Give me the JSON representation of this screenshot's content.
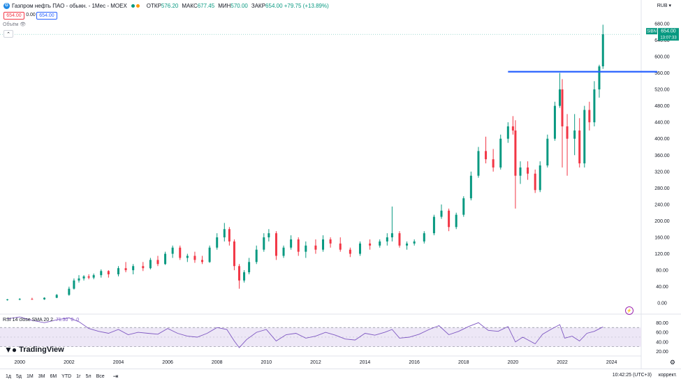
{
  "header": {
    "title": "Газпром нефть ПАО - обыкн. - 1Мес - MOEX",
    "ohlc": [
      {
        "label": "ОТКР",
        "value": "576.20"
      },
      {
        "label": "МАКС",
        "value": "677.45"
      },
      {
        "label": "МИН",
        "value": "570.00"
      },
      {
        "label": "ЗАКР",
        "value": "654.00 +79.75 (+13.89%)"
      }
    ],
    "sell_price": "654.00",
    "spread": "0.00",
    "buy_price": "654.00",
    "currency": "RUB",
    "volume_label": "Объём"
  },
  "rsi": {
    "label": "RSI 14 close SMA 20 2",
    "value": "71.30",
    "extra1": "0",
    "extra2": "0"
  },
  "branding": {
    "name": "TradingView"
  },
  "toolbar": {
    "timeframes": [
      "1д",
      "5д",
      "1М",
      "3М",
      "6М",
      "YTD",
      "1г",
      "5л",
      "Все"
    ],
    "clock": "10:42:25 (UTC+3)",
    "correction": "коррект."
  },
  "colors": {
    "up": "#089981",
    "down": "#f23645",
    "level": "#2962ff",
    "rsi": "#7e57c2",
    "rsi_band": "#ede7f6"
  },
  "chart_data": {
    "type": "candlestick",
    "symbol": "SIBN",
    "last_price": "654.00",
    "last_time": "13:07:33",
    "ylim": [
      -20,
      690
    ],
    "y_ticks": [
      "0.00",
      "40.00",
      "80.00",
      "120.00",
      "160.00",
      "200.00",
      "240.00",
      "280.00",
      "320.00",
      "360.00",
      "400.00",
      "440.00",
      "480.00",
      "520.00",
      "560.00",
      "600.00",
      "640.00",
      "680.00"
    ],
    "x_ticks": [
      "2000",
      "2002",
      "2004",
      "2006",
      "2008",
      "2010",
      "2012",
      "2014",
      "2016",
      "2018",
      "2020",
      "2022",
      "2024"
    ],
    "horizontal_level": 563,
    "candles": [
      {
        "t": 1999.5,
        "o": 8,
        "h": 10,
        "l": 6,
        "c": 9
      },
      {
        "t": 2000.0,
        "o": 9,
        "h": 12,
        "l": 7,
        "c": 10
      },
      {
        "t": 2000.5,
        "o": 10,
        "h": 13,
        "l": 8,
        "c": 9
      },
      {
        "t": 2001.0,
        "o": 9,
        "h": 14,
        "l": 8,
        "c": 13
      },
      {
        "t": 2001.5,
        "o": 13,
        "h": 22,
        "l": 12,
        "c": 20
      },
      {
        "t": 2002.0,
        "o": 20,
        "h": 40,
        "l": 18,
        "c": 35
      },
      {
        "t": 2002.2,
        "o": 35,
        "h": 60,
        "l": 33,
        "c": 55
      },
      {
        "t": 2002.4,
        "o": 55,
        "h": 68,
        "l": 50,
        "c": 60
      },
      {
        "t": 2002.6,
        "o": 60,
        "h": 68,
        "l": 55,
        "c": 65
      },
      {
        "t": 2002.8,
        "o": 65,
        "h": 70,
        "l": 58,
        "c": 62
      },
      {
        "t": 2003.0,
        "o": 62,
        "h": 72,
        "l": 58,
        "c": 68
      },
      {
        "t": 2003.3,
        "o": 68,
        "h": 82,
        "l": 62,
        "c": 78
      },
      {
        "t": 2003.6,
        "o": 78,
        "h": 80,
        "l": 62,
        "c": 70
      },
      {
        "t": 2004.0,
        "o": 70,
        "h": 90,
        "l": 65,
        "c": 85
      },
      {
        "t": 2004.3,
        "o": 85,
        "h": 100,
        "l": 75,
        "c": 80
      },
      {
        "t": 2004.6,
        "o": 80,
        "h": 95,
        "l": 70,
        "c": 90
      },
      {
        "t": 2005.0,
        "o": 90,
        "h": 100,
        "l": 78,
        "c": 85
      },
      {
        "t": 2005.3,
        "o": 85,
        "h": 110,
        "l": 82,
        "c": 105
      },
      {
        "t": 2005.6,
        "o": 105,
        "h": 115,
        "l": 90,
        "c": 95
      },
      {
        "t": 2005.9,
        "o": 95,
        "h": 125,
        "l": 93,
        "c": 120
      },
      {
        "t": 2006.2,
        "o": 120,
        "h": 140,
        "l": 110,
        "c": 135
      },
      {
        "t": 2006.5,
        "o": 135,
        "h": 140,
        "l": 105,
        "c": 110
      },
      {
        "t": 2006.8,
        "o": 110,
        "h": 120,
        "l": 100,
        "c": 115
      },
      {
        "t": 2007.1,
        "o": 115,
        "h": 125,
        "l": 98,
        "c": 105
      },
      {
        "t": 2007.4,
        "o": 105,
        "h": 115,
        "l": 95,
        "c": 100
      },
      {
        "t": 2007.7,
        "o": 100,
        "h": 140,
        "l": 98,
        "c": 135
      },
      {
        "t": 2008.0,
        "o": 135,
        "h": 170,
        "l": 130,
        "c": 160
      },
      {
        "t": 2008.3,
        "o": 160,
        "h": 195,
        "l": 150,
        "c": 180
      },
      {
        "t": 2008.5,
        "o": 180,
        "h": 185,
        "l": 140,
        "c": 150
      },
      {
        "t": 2008.7,
        "o": 150,
        "h": 155,
        "l": 80,
        "c": 90
      },
      {
        "t": 2008.9,
        "o": 90,
        "h": 95,
        "l": 35,
        "c": 55
      },
      {
        "t": 2009.1,
        "o": 55,
        "h": 80,
        "l": 50,
        "c": 75
      },
      {
        "t": 2009.3,
        "o": 75,
        "h": 110,
        "l": 70,
        "c": 100
      },
      {
        "t": 2009.6,
        "o": 100,
        "h": 140,
        "l": 95,
        "c": 130
      },
      {
        "t": 2009.9,
        "o": 130,
        "h": 170,
        "l": 125,
        "c": 160
      },
      {
        "t": 2010.1,
        "o": 160,
        "h": 180,
        "l": 150,
        "c": 170
      },
      {
        "t": 2010.4,
        "o": 170,
        "h": 175,
        "l": 105,
        "c": 115
      },
      {
        "t": 2010.7,
        "o": 115,
        "h": 140,
        "l": 110,
        "c": 135
      },
      {
        "t": 2011.0,
        "o": 135,
        "h": 165,
        "l": 130,
        "c": 155
      },
      {
        "t": 2011.3,
        "o": 155,
        "h": 160,
        "l": 115,
        "c": 125
      },
      {
        "t": 2011.6,
        "o": 125,
        "h": 150,
        "l": 110,
        "c": 140
      },
      {
        "t": 2012.0,
        "o": 140,
        "h": 155,
        "l": 120,
        "c": 130
      },
      {
        "t": 2012.3,
        "o": 130,
        "h": 165,
        "l": 125,
        "c": 155
      },
      {
        "t": 2012.6,
        "o": 155,
        "h": 160,
        "l": 135,
        "c": 145
      },
      {
        "t": 2013.0,
        "o": 145,
        "h": 160,
        "l": 125,
        "c": 130
      },
      {
        "t": 2013.4,
        "o": 130,
        "h": 135,
        "l": 112,
        "c": 120
      },
      {
        "t": 2013.8,
        "o": 120,
        "h": 150,
        "l": 115,
        "c": 145
      },
      {
        "t": 2014.2,
        "o": 145,
        "h": 155,
        "l": 130,
        "c": 140
      },
      {
        "t": 2014.6,
        "o": 140,
        "h": 155,
        "l": 135,
        "c": 150
      },
      {
        "t": 2014.9,
        "o": 150,
        "h": 170,
        "l": 140,
        "c": 160
      },
      {
        "t": 2015.1,
        "o": 160,
        "h": 235,
        "l": 150,
        "c": 170
      },
      {
        "t": 2015.4,
        "o": 170,
        "h": 175,
        "l": 135,
        "c": 140
      },
      {
        "t": 2015.7,
        "o": 140,
        "h": 150,
        "l": 130,
        "c": 145
      },
      {
        "t": 2016.0,
        "o": 145,
        "h": 155,
        "l": 140,
        "c": 150
      },
      {
        "t": 2016.4,
        "o": 150,
        "h": 175,
        "l": 145,
        "c": 170
      },
      {
        "t": 2016.8,
        "o": 170,
        "h": 215,
        "l": 165,
        "c": 210
      },
      {
        "t": 2017.1,
        "o": 210,
        "h": 240,
        "l": 205,
        "c": 225
      },
      {
        "t": 2017.4,
        "o": 225,
        "h": 230,
        "l": 175,
        "c": 185
      },
      {
        "t": 2017.7,
        "o": 185,
        "h": 220,
        "l": 180,
        "c": 215
      },
      {
        "t": 2018.0,
        "o": 215,
        "h": 260,
        "l": 210,
        "c": 255
      },
      {
        "t": 2018.3,
        "o": 255,
        "h": 320,
        "l": 250,
        "c": 310
      },
      {
        "t": 2018.6,
        "o": 310,
        "h": 380,
        "l": 305,
        "c": 370
      },
      {
        "t": 2018.9,
        "o": 370,
        "h": 405,
        "l": 340,
        "c": 350
      },
      {
        "t": 2019.2,
        "o": 350,
        "h": 375,
        "l": 320,
        "c": 330
      },
      {
        "t": 2019.5,
        "o": 330,
        "h": 410,
        "l": 325,
        "c": 400
      },
      {
        "t": 2019.8,
        "o": 400,
        "h": 440,
        "l": 390,
        "c": 430
      },
      {
        "t": 2020.0,
        "o": 430,
        "h": 455,
        "l": 410,
        "c": 420
      },
      {
        "t": 2020.1,
        "o": 420,
        "h": 445,
        "l": 230,
        "c": 310
      },
      {
        "t": 2020.3,
        "o": 310,
        "h": 345,
        "l": 290,
        "c": 330
      },
      {
        "t": 2020.6,
        "o": 330,
        "h": 345,
        "l": 300,
        "c": 315
      },
      {
        "t": 2020.9,
        "o": 315,
        "h": 325,
        "l": 268,
        "c": 275
      },
      {
        "t": 2021.1,
        "o": 275,
        "h": 345,
        "l": 270,
        "c": 335
      },
      {
        "t": 2021.4,
        "o": 335,
        "h": 410,
        "l": 330,
        "c": 400
      },
      {
        "t": 2021.7,
        "o": 400,
        "h": 490,
        "l": 395,
        "c": 480
      },
      {
        "t": 2021.9,
        "o": 480,
        "h": 560,
        "l": 475,
        "c": 520
      },
      {
        "t": 2022.0,
        "o": 520,
        "h": 545,
        "l": 330,
        "c": 430
      },
      {
        "t": 2022.2,
        "o": 430,
        "h": 460,
        "l": 310,
        "c": 400
      },
      {
        "t": 2022.5,
        "o": 400,
        "h": 460,
        "l": 360,
        "c": 420
      },
      {
        "t": 2022.7,
        "o": 420,
        "h": 450,
        "l": 330,
        "c": 340
      },
      {
        "t": 2022.9,
        "o": 340,
        "h": 480,
        "l": 330,
        "c": 470
      },
      {
        "t": 2023.1,
        "o": 470,
        "h": 490,
        "l": 420,
        "c": 440
      },
      {
        "t": 2023.3,
        "o": 440,
        "h": 540,
        "l": 430,
        "c": 520
      },
      {
        "t": 2023.5,
        "o": 520,
        "h": 580,
        "l": 500,
        "c": 576
      },
      {
        "t": 2023.65,
        "o": 576.2,
        "h": 677.45,
        "l": 570,
        "c": 654
      }
    ],
    "rsi_ylim": [
      18,
      95
    ],
    "rsi_ticks": [
      "20.00",
      "40.00",
      "60.00",
      "80.00"
    ],
    "rsi_band": [
      30,
      70
    ],
    "rsi_series": [
      [
        1999.5,
        88
      ],
      [
        2000.0,
        92
      ],
      [
        2000.5,
        85
      ],
      [
        2001.0,
        80
      ],
      [
        2001.5,
        86
      ],
      [
        2002.0,
        90
      ],
      [
        2002.4,
        82
      ],
      [
        2002.8,
        68
      ],
      [
        2003.2,
        62
      ],
      [
        2003.6,
        58
      ],
      [
        2004.0,
        66
      ],
      [
        2004.4,
        55
      ],
      [
        2004.8,
        60
      ],
      [
        2005.2,
        58
      ],
      [
        2005.6,
        56
      ],
      [
        2006.0,
        68
      ],
      [
        2006.4,
        58
      ],
      [
        2006.8,
        52
      ],
      [
        2007.2,
        50
      ],
      [
        2007.6,
        58
      ],
      [
        2008.0,
        70
      ],
      [
        2008.4,
        66
      ],
      [
        2008.7,
        42
      ],
      [
        2008.9,
        28
      ],
      [
        2009.2,
        45
      ],
      [
        2009.6,
        60
      ],
      [
        2010.0,
        66
      ],
      [
        2010.4,
        42
      ],
      [
        2010.8,
        55
      ],
      [
        2011.2,
        58
      ],
      [
        2011.6,
        48
      ],
      [
        2012.0,
        52
      ],
      [
        2012.4,
        60
      ],
      [
        2012.8,
        54
      ],
      [
        2013.2,
        46
      ],
      [
        2013.6,
        44
      ],
      [
        2014.0,
        58
      ],
      [
        2014.4,
        54
      ],
      [
        2014.8,
        60
      ],
      [
        2015.1,
        66
      ],
      [
        2015.4,
        48
      ],
      [
        2015.8,
        50
      ],
      [
        2016.2,
        56
      ],
      [
        2016.6,
        66
      ],
      [
        2017.0,
        74
      ],
      [
        2017.4,
        55
      ],
      [
        2017.8,
        62
      ],
      [
        2018.2,
        72
      ],
      [
        2018.6,
        80
      ],
      [
        2019.0,
        64
      ],
      [
        2019.4,
        62
      ],
      [
        2019.8,
        72
      ],
      [
        2020.1,
        40
      ],
      [
        2020.4,
        50
      ],
      [
        2020.9,
        36
      ],
      [
        2021.2,
        56
      ],
      [
        2021.6,
        68
      ],
      [
        2021.9,
        76
      ],
      [
        2022.1,
        48
      ],
      [
        2022.4,
        52
      ],
      [
        2022.7,
        42
      ],
      [
        2023.0,
        58
      ],
      [
        2023.3,
        62
      ],
      [
        2023.65,
        71.3
      ]
    ]
  }
}
